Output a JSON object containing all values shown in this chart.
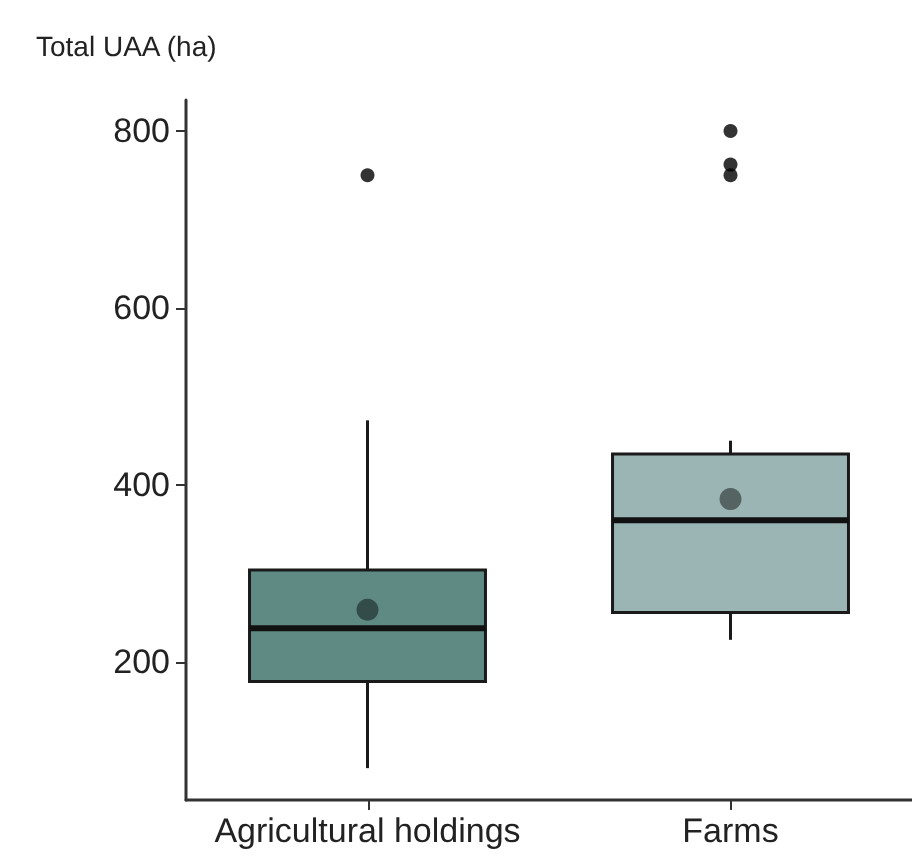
{
  "chart_data": {
    "type": "box",
    "ylabel": "Total UAA (ha)",
    "categories": [
      "Agricultural holdings",
      "Farms"
    ],
    "boxes": [
      {
        "low": 80,
        "q1": 178,
        "median": 238,
        "q3": 304,
        "high": 473,
        "mean": 259,
        "outliers": [
          750
        ]
      },
      {
        "low": 225,
        "q1": 256,
        "median": 360,
        "q3": 435,
        "high": 450,
        "mean": 384,
        "outliers": [
          800,
          762,
          750
        ]
      }
    ],
    "colors": [
      "#5f8a84",
      "#9ab5b3"
    ],
    "ylim": [
      44,
      835
    ],
    "yticks": [
      200,
      400,
      600,
      800
    ],
    "grid": false
  }
}
